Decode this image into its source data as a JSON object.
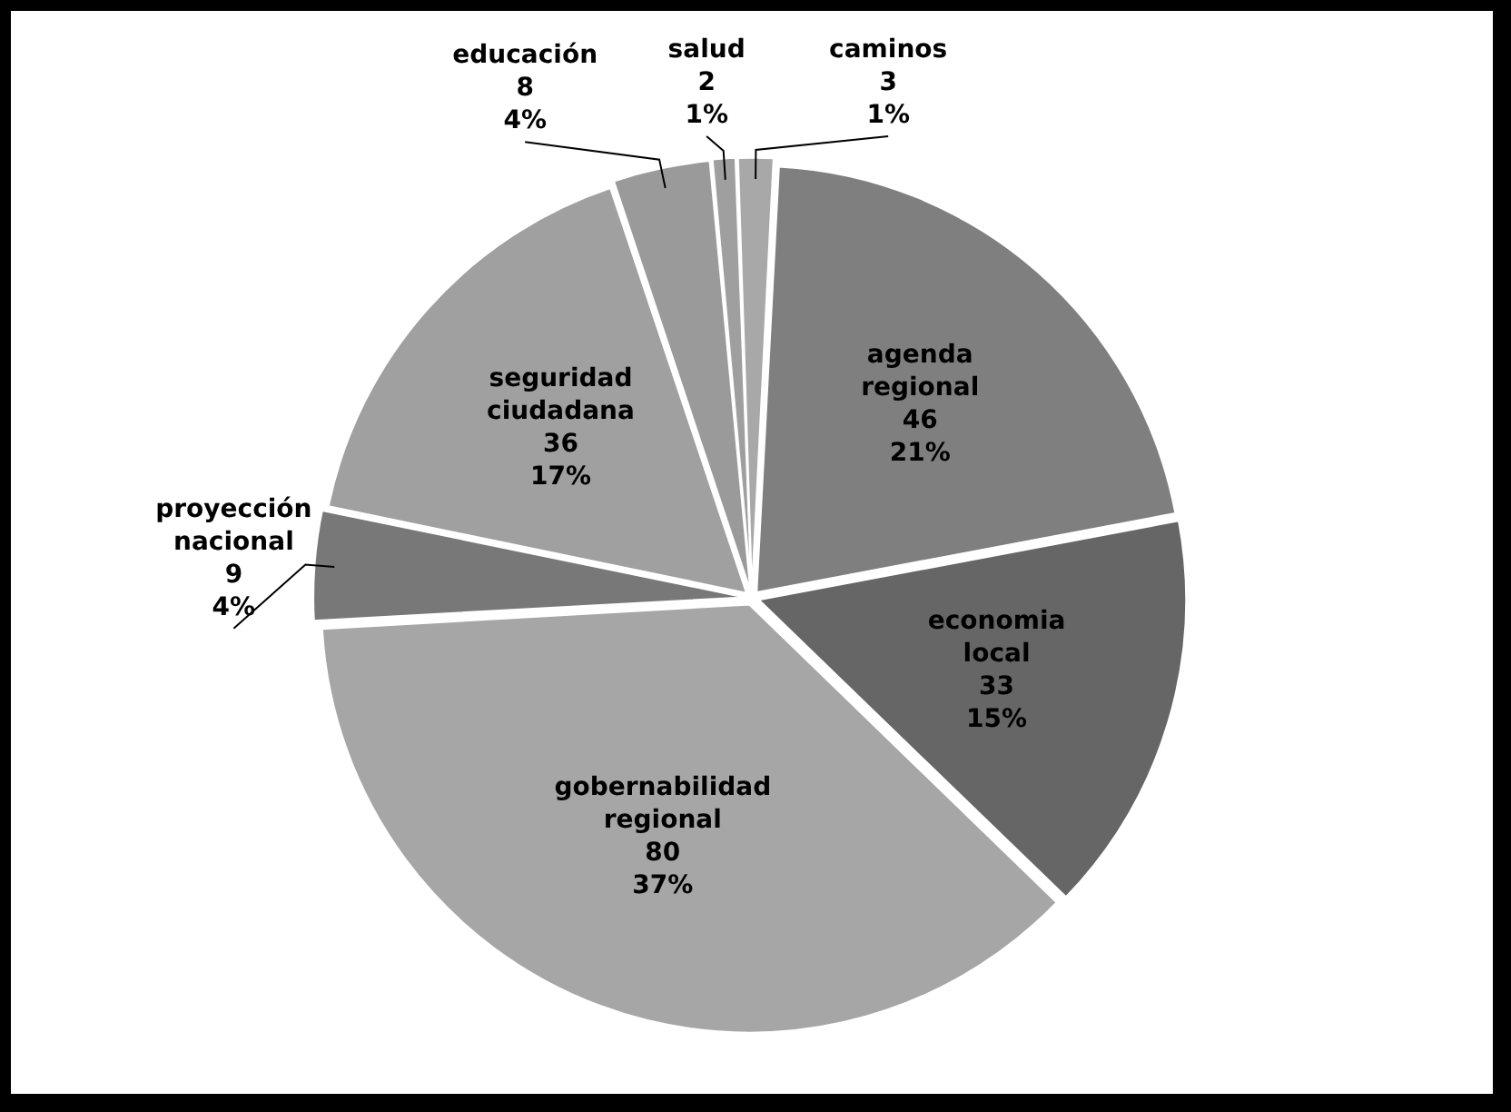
{
  "chart_data": {
    "type": "pie",
    "categories": [
      "agenda regional",
      "economia local",
      "gobernabilidad regional",
      "proyección nacional",
      "seguridad ciudadana",
      "educación",
      "salud",
      "caminos"
    ],
    "values": [
      46,
      33,
      80,
      9,
      36,
      8,
      2,
      3
    ],
    "colors": [
      "#7f7f7f",
      "#666666",
      "#a6a6a6",
      "#787878",
      "#a0a0a0",
      "#9a9a9a",
      "#9f9f9f",
      "#a8a8a8"
    ],
    "value_labels": [
      "46\n21%",
      "33\n15%",
      "80\n37%",
      "9\n4%",
      "36\n17%",
      "8\n4%",
      "2\n1%",
      "3\n1%"
    ],
    "legend": false
  }
}
